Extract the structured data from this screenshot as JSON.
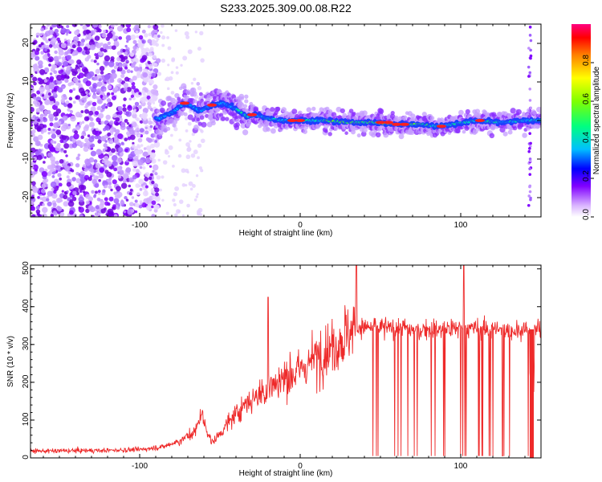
{
  "chart_data": [
    {
      "type": "heatmap",
      "title": "S233.2025.309.00.08.R22",
      "xlabel": "Height of straight line (km)",
      "ylabel": "Frequency (Hz)",
      "xlim": [
        -168,
        150
      ],
      "ylim": [
        -25,
        25
      ],
      "xticks": [
        -100,
        0,
        100
      ],
      "xtick_labels": [
        "-100",
        "0",
        "100"
      ],
      "yticks": [
        -20,
        -10,
        0,
        10,
        20
      ],
      "ytick_labels": [
        "-20",
        "-10",
        "0",
        "10",
        "20"
      ],
      "colorbar": {
        "label": "Normalized spectral amplitude",
        "range": [
          0,
          1
        ],
        "ticks": [
          0,
          0.2,
          0.4,
          0.6,
          0.8
        ],
        "tick_labels": [
          "0.0",
          "0.2",
          "0.4",
          "0.6",
          "0.8"
        ],
        "colormap": "rainbow",
        "stops": [
          "#ffffff",
          "#d9b3ff",
          "#8000ff",
          "#0000ff",
          "#00bfff",
          "#00ff80",
          "#80ff00",
          "#ffff00",
          "#ff8000",
          "#ff0000",
          "#ff0080"
        ]
      },
      "ridge": {
        "description_points_x": [
          -88,
          -80,
          -72,
          -62,
          -55,
          -48,
          -40,
          -33,
          -28,
          -20,
          -10,
          0,
          15,
          30,
          45,
          60,
          75,
          85,
          95,
          110,
          125,
          140,
          148
        ],
        "description_points_y": [
          0.5,
          2.0,
          4.5,
          2.5,
          4.0,
          4.5,
          3.0,
          1.0,
          1.5,
          0.5,
          0.0,
          0.0,
          0.0,
          -0.5,
          -0.5,
          -1.0,
          -1.0,
          -1.5,
          -1.0,
          0.0,
          -0.5,
          0.0,
          0.0
        ]
      }
    },
    {
      "type": "line",
      "title": "",
      "xlabel": "Height of straight line (km)",
      "ylabel": "SNR (10 * v/v)",
      "xlim": [
        -168,
        150
      ],
      "ylim": [
        0,
        510
      ],
      "xticks": [
        -100,
        0,
        100
      ],
      "xtick_labels": [
        "-100",
        "0",
        "100"
      ],
      "yticks": [
        0,
        100,
        200,
        300,
        400,
        500
      ],
      "ytick_labels": [
        "0",
        "100",
        "200",
        "300",
        "400",
        "500"
      ],
      "series": [
        {
          "name": "SNR",
          "color": "#ee2a2a",
          "envelope_x": [
            -168,
            -120,
            -100,
            -85,
            -75,
            -65,
            -62,
            -55,
            -45,
            -35,
            -25,
            -15,
            -5,
            5,
            15,
            25,
            30,
            35,
            50,
            70,
            90,
            100,
            120,
            140,
            150
          ],
          "envelope_y": [
            18,
            20,
            22,
            30,
            45,
            70,
            120,
            40,
            90,
            140,
            170,
            200,
            220,
            250,
            280,
            310,
            330,
            345,
            345,
            340,
            340,
            345,
            340,
            335,
            340
          ],
          "peaks_x": [
            -20,
            35,
            102
          ],
          "peaks_y": [
            425,
            510,
            510
          ]
        }
      ]
    }
  ]
}
